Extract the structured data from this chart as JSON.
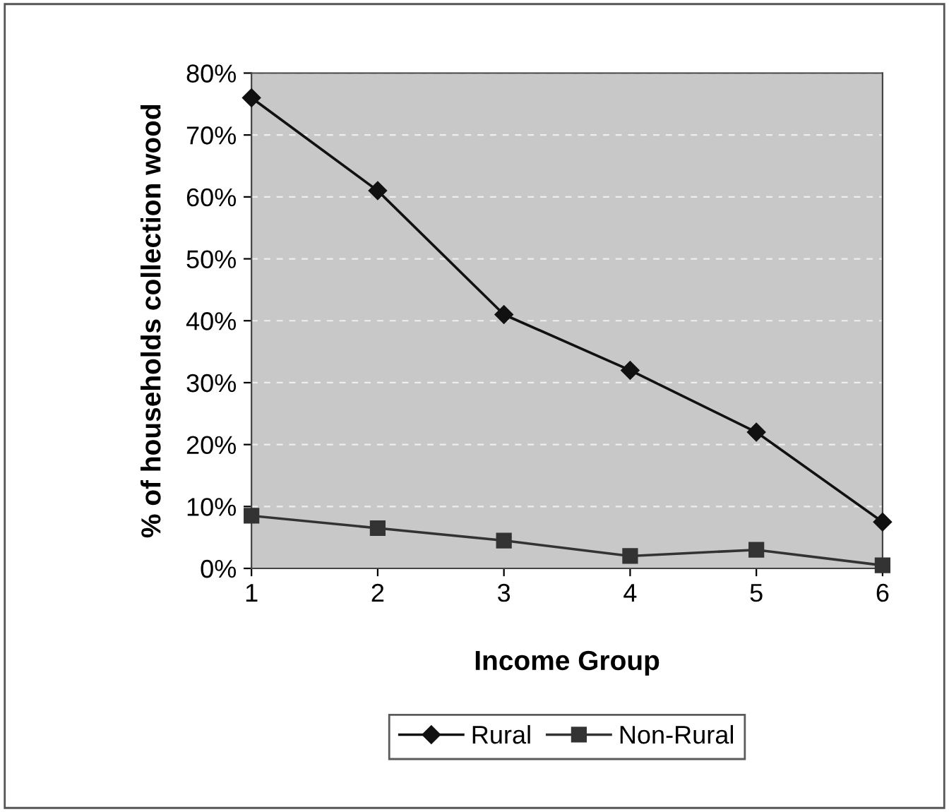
{
  "chart_data": {
    "type": "line",
    "xlabel": "Income Group",
    "ylabel": "% of households collection wood",
    "categories": [
      "1",
      "2",
      "3",
      "4",
      "5",
      "6"
    ],
    "series": [
      {
        "name": "Rural",
        "color": "#111111",
        "marker": "diamond",
        "values": [
          76,
          61,
          41,
          32,
          22,
          7.5
        ]
      },
      {
        "name": "Non-Rural",
        "color": "#333333",
        "marker": "square",
        "values": [
          8.5,
          6.5,
          4.5,
          2,
          3,
          0.5
        ]
      }
    ],
    "ylim": [
      0,
      80
    ],
    "yticks": [
      {
        "value": 0,
        "label": "0%"
      },
      {
        "value": 10,
        "label": "10%"
      },
      {
        "value": 20,
        "label": "20%"
      },
      {
        "value": 30,
        "label": "30%"
      },
      {
        "value": 40,
        "label": "40%"
      },
      {
        "value": 50,
        "label": "50%"
      },
      {
        "value": 60,
        "label": "60%"
      },
      {
        "value": 70,
        "label": "70%"
      },
      {
        "value": 80,
        "label": "80%"
      }
    ],
    "grid": "y",
    "legend": "bottom",
    "line_style": "solid"
  }
}
